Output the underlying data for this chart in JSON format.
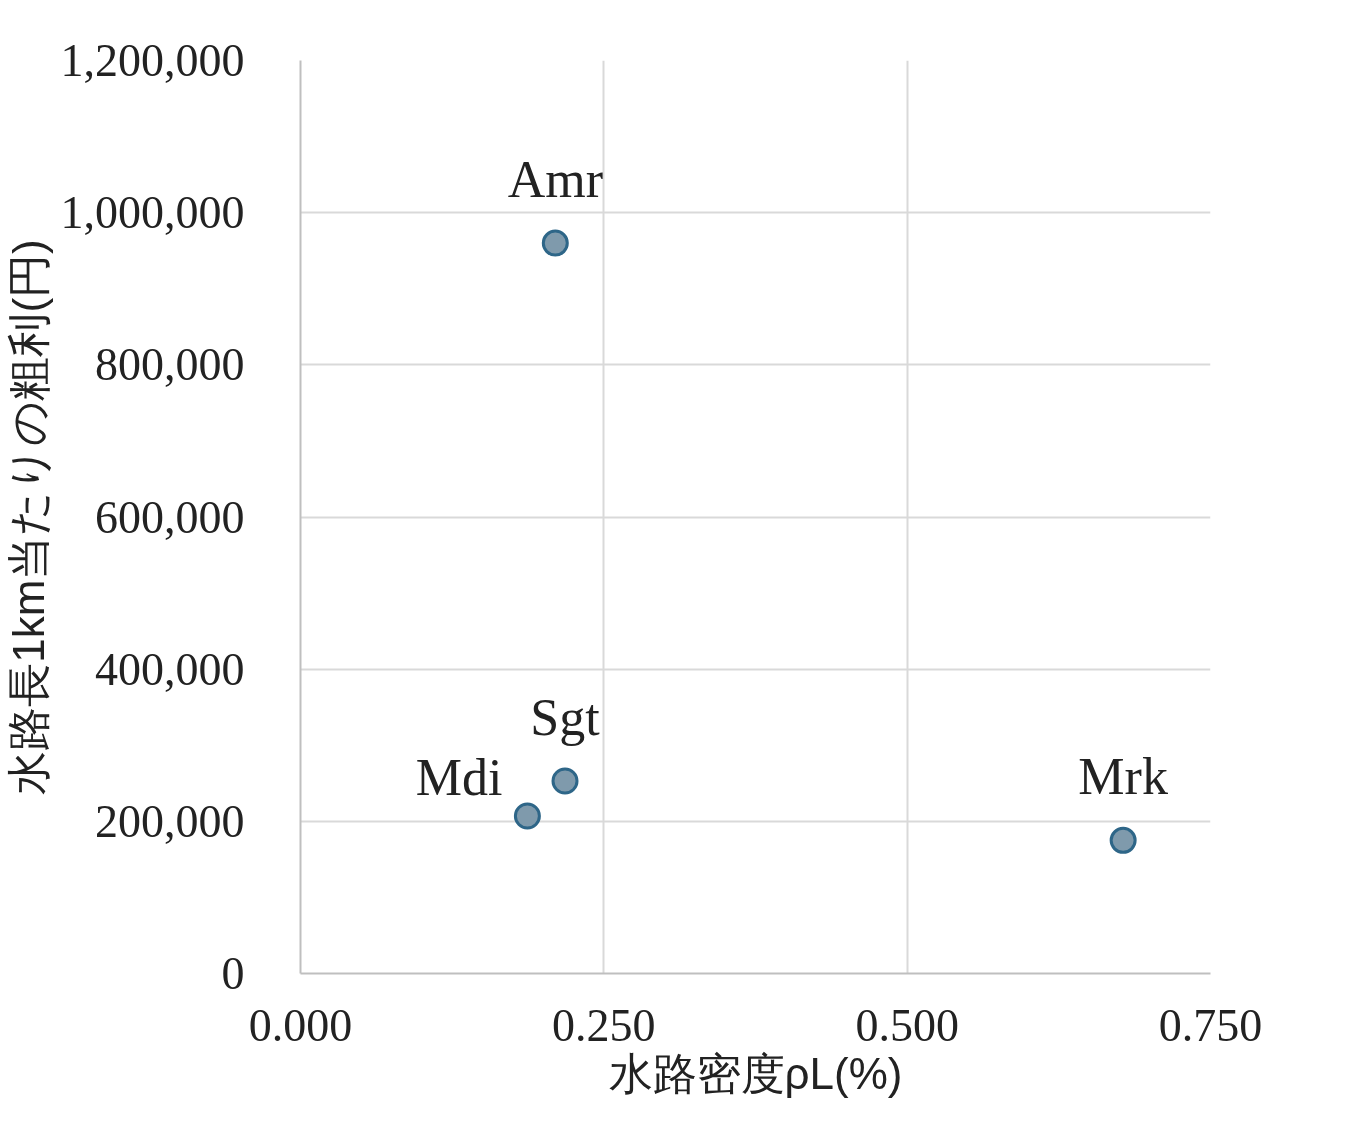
{
  "chart_data": {
    "type": "scatter",
    "xlabel": "水路密度ρL(%)",
    "ylabel": "水路長1km当たりの粗利(円)",
    "x": [
      0.21,
      0.218,
      0.187,
      0.678
    ],
    "series": [
      {
        "color": "#7f9aac",
        "values": [
          960000,
          253000,
          207000,
          175000
        ]
      }
    ],
    "annotations": [
      {
        "text": "Amr",
        "x": 0.21,
        "y": 960000
      },
      {
        "text": "Sgt",
        "x": 0.218,
        "y": 253000
      },
      {
        "text": "Mdi",
        "x": 0.187,
        "y": 207000
      },
      {
        "text": "Mrk",
        "x": 0.678,
        "y": 175000
      }
    ],
    "xlim": [
      0,
      0.75
    ],
    "ylim": [
      0,
      1200000
    ],
    "xticks": [
      {
        "value": 0,
        "label": "0.000"
      },
      {
        "value": 0.25,
        "label": "0.250"
      },
      {
        "value": 0.5,
        "label": "0.500"
      },
      {
        "value": 0.75,
        "label": "0.750"
      }
    ],
    "yticks": [
      0,
      {
        "value": 200000,
        "label": "200,000"
      },
      {
        "value": 400000,
        "label": "400,000"
      },
      {
        "value": 600000,
        "label": "600,000"
      },
      {
        "value": 800000,
        "label": "800,000"
      },
      {
        "value": 1000000,
        "label": "1,000,000"
      },
      {
        "value": 1200000,
        "label": "1,200,000"
      }
    ],
    "grid": true,
    "marker": "circle"
  }
}
